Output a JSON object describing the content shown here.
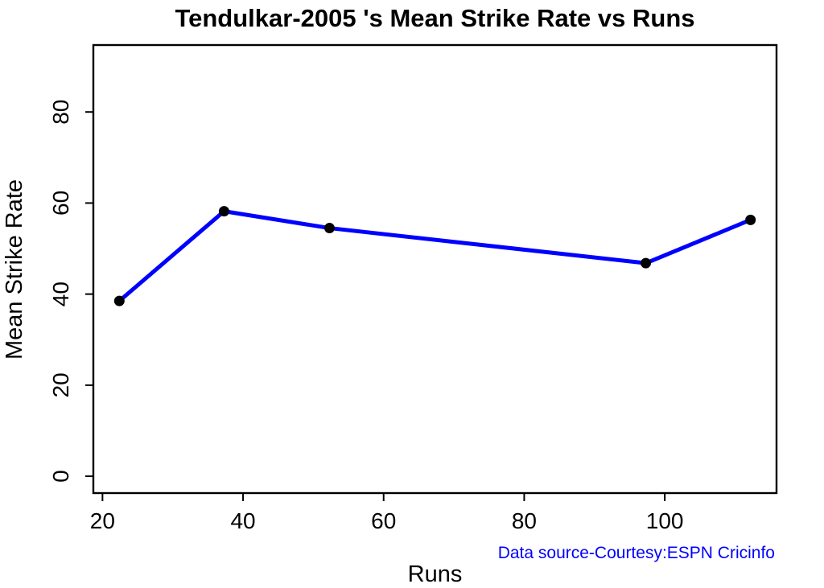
{
  "chart_data": {
    "type": "line",
    "title": "Tendulkar-2005 's Mean Strike Rate vs Runs",
    "xlabel": "Runs",
    "ylabel": "Mean Strike Rate",
    "annotation": "Data source-Courtesy:ESPN Cricinfo",
    "x_ticks": [
      20,
      40,
      60,
      80,
      100
    ],
    "y_ticks": [
      0,
      20,
      40,
      60,
      80
    ],
    "xlim": [
      18.7,
      115.9
    ],
    "ylim": [
      -3.7,
      94.7
    ],
    "grid": false,
    "legend": "none",
    "box": true,
    "series": [
      {
        "name": "Tendulkar 2005 mean strike rate vs runs",
        "points": [
          {
            "runs": 22.4,
            "mean_strike_rate": 38.5
          },
          {
            "runs": 37.3,
            "mean_strike_rate": 58.2
          },
          {
            "runs": 52.3,
            "mean_strike_rate": 54.5
          },
          {
            "runs": 97.3,
            "mean_strike_rate": 46.8
          },
          {
            "runs": 112.2,
            "mean_strike_rate": 56.3
          }
        ]
      }
    ]
  },
  "colors": {
    "line": "#0000FF",
    "marker": "#000000",
    "axis": "#000000",
    "tick_text": "#000000",
    "title_text": "#000000",
    "footer_note": "#0000FF",
    "background": "#FFFFFF"
  }
}
